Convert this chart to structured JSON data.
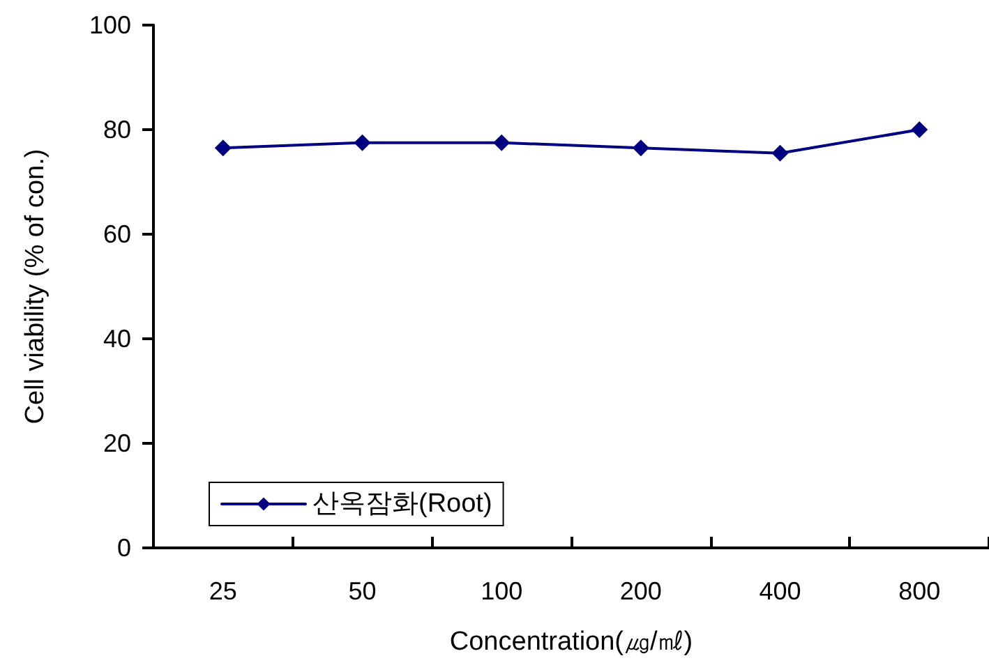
{
  "chart_data": {
    "type": "line",
    "xlabel": "Concentration(㎍/㎖)",
    "ylabel": "Cell viability (% of con.)",
    "categories": [
      "25",
      "50",
      "100",
      "200",
      "400",
      "800"
    ],
    "series": [
      {
        "name": "산옥잠화(Root)",
        "color": "#000080",
        "values": [
          76.5,
          77.5,
          77.5,
          76.5,
          75.5,
          80
        ]
      }
    ],
    "ylim": [
      0,
      100
    ],
    "yticks": [
      0,
      20,
      40,
      60,
      80,
      100
    ],
    "grid": false,
    "legend": "bottom left",
    "marker": "diamond",
    "line_style": "solid"
  }
}
